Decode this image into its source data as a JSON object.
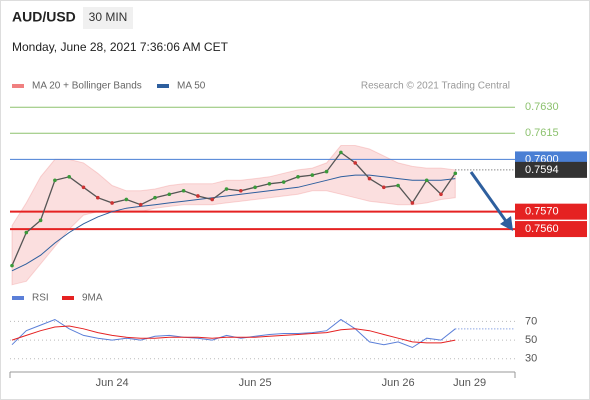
{
  "chart_data": [
    {
      "type": "line",
      "title": "AUD/USD",
      "subtitle": "30 MIN",
      "timestamp": "Monday, June 28, 2021 7:36:06 AM CET",
      "credit": "Research © 2021 Trading Central",
      "categories": [
        null,
        null,
        null,
        null,
        null,
        null,
        null,
        "Jun 24",
        null,
        null,
        null,
        null,
        null,
        null,
        null,
        null,
        null,
        "Jun 25",
        null,
        null,
        null,
        null,
        null,
        null,
        null,
        null,
        null,
        "Jun 26",
        null,
        null,
        null,
        null,
        "Jun 29"
      ],
      "price": {
        "color": "#555555",
        "values": [
          0.7539,
          0.7558,
          0.7565,
          0.7588,
          0.759,
          0.7584,
          0.7578,
          0.7575,
          0.7577,
          0.7574,
          0.7578,
          0.758,
          0.7582,
          0.7579,
          0.7577,
          0.7583,
          0.7582,
          0.7584,
          0.7586,
          0.7587,
          0.759,
          0.7591,
          0.7593,
          0.7604,
          0.7598,
          0.7589,
          0.7584,
          0.7585,
          0.7575,
          0.7588,
          0.758,
          0.7592,
          null
        ]
      },
      "series": [
        {
          "name": "MA 20 + Bollinger Bands",
          "color": "#f08080",
          "upper": [
            0.7562,
            0.7575,
            0.759,
            0.76,
            0.76,
            0.7598,
            0.7592,
            0.7585,
            0.7582,
            0.7582,
            0.7583,
            0.7585,
            0.7586,
            0.7586,
            0.7586,
            0.7588,
            0.7588,
            0.7589,
            0.759,
            0.7592,
            0.7594,
            0.7595,
            0.7598,
            0.7608,
            0.7608,
            0.7606,
            0.7602,
            0.7598,
            0.7596,
            0.7595,
            0.7595,
            0.7594,
            null
          ],
          "lower": [
            0.7528,
            0.753,
            0.754,
            0.755,
            0.756,
            0.7568,
            0.757,
            0.757,
            0.757,
            0.757,
            0.7572,
            0.7573,
            0.7574,
            0.7574,
            0.7574,
            0.7575,
            0.7576,
            0.7577,
            0.7578,
            0.7579,
            0.758,
            0.7582,
            0.7582,
            0.758,
            0.7578,
            0.7576,
            0.7575,
            0.7574,
            0.7574,
            0.7575,
            0.7577,
            0.7578,
            null
          ]
        },
        {
          "name": "MA 50",
          "color": "#2e5f9e",
          "values": [
            0.7536,
            0.754,
            0.7545,
            0.7552,
            0.7558,
            0.7563,
            0.7567,
            0.757,
            0.7572,
            0.7573,
            0.7574,
            0.7575,
            0.7576,
            0.7577,
            0.7578,
            0.7579,
            0.758,
            0.7581,
            0.7582,
            0.7583,
            0.7584,
            0.7586,
            0.7588,
            0.759,
            0.7591,
            0.7591,
            0.759,
            0.7589,
            0.7588,
            0.7588,
            0.7588,
            0.7589,
            null
          ]
        }
      ],
      "ylim": [
        0.7525,
        0.7637
      ],
      "levels": [
        {
          "value": 0.763,
          "label": "0.7630",
          "color": "#8dc26f"
        },
        {
          "value": 0.7615,
          "label": "0.7615",
          "color": "#8dc26f"
        },
        {
          "value": 0.76,
          "label": "0.7600",
          "color": "#4a7fd4"
        },
        {
          "value": 0.757,
          "label": "0.7570",
          "color": "#e52222"
        },
        {
          "value": 0.756,
          "label": "0.7560",
          "color": "#e52222"
        }
      ],
      "last_price": {
        "value": 0.7594,
        "label": "0.7594"
      }
    },
    {
      "type": "line",
      "series": [
        {
          "name": "RSI",
          "color": "#5b7fd8",
          "values": [
            45,
            60,
            66,
            72,
            62,
            55,
            52,
            50,
            52,
            50,
            54,
            55,
            53,
            52,
            50,
            55,
            52,
            54,
            56,
            57,
            57,
            58,
            60,
            72,
            62,
            48,
            45,
            48,
            42,
            52,
            50,
            62,
            null
          ]
        },
        {
          "name": "9MA",
          "color": "#e52222",
          "values": [
            50,
            55,
            60,
            64,
            65,
            62,
            58,
            55,
            53,
            52,
            52,
            53,
            53,
            53,
            52,
            53,
            53,
            53,
            54,
            55,
            56,
            57,
            58,
            61,
            62,
            60,
            56,
            52,
            48,
            47,
            47,
            50,
            null
          ]
        }
      ],
      "ylim": [
        18,
        80
      ],
      "yticks": [
        30,
        50,
        70
      ]
    }
  ]
}
